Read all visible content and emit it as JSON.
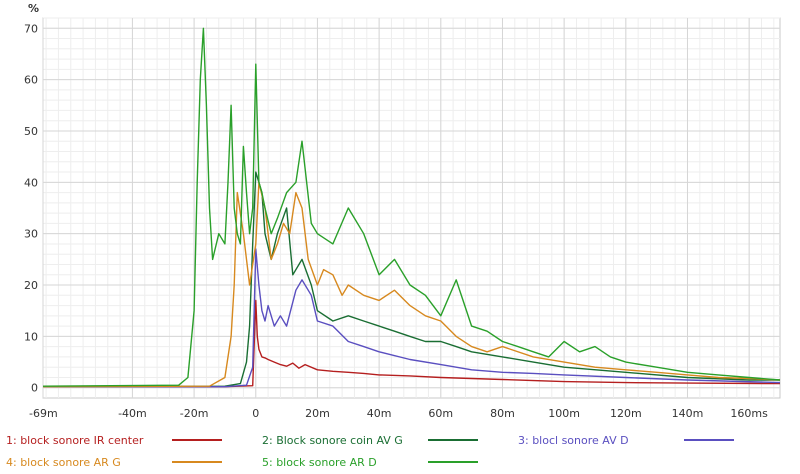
{
  "chart_data": {
    "type": "line",
    "title": "",
    "xlabel": "",
    "ylabel": "%",
    "xlim": [
      -69,
      170
    ],
    "ylim": [
      -2,
      72
    ],
    "x_ticks": [
      {
        "value": -69,
        "label": "-69m"
      },
      {
        "value": -40,
        "label": "-40m"
      },
      {
        "value": -20,
        "label": "-20m"
      },
      {
        "value": 0,
        "label": "0"
      },
      {
        "value": 20,
        "label": "20m"
      },
      {
        "value": 40,
        "label": "40m"
      },
      {
        "value": 60,
        "label": "60m"
      },
      {
        "value": 80,
        "label": "80m"
      },
      {
        "value": 100,
        "label": "100m"
      },
      {
        "value": 120,
        "label": "120m"
      },
      {
        "value": 140,
        "label": "140m"
      },
      {
        "value": 160,
        "label": "160ms"
      }
    ],
    "y_ticks": [
      0,
      10,
      20,
      30,
      40,
      50,
      60,
      70
    ],
    "grid": true,
    "legend_position": "bottom",
    "series": [
      {
        "name": "1: block sonore IR center",
        "color": "#b51f1f",
        "x": [
          -69,
          -10,
          -1,
          0,
          0.5,
          1,
          2,
          3,
          4,
          6,
          8,
          10,
          12,
          14,
          16,
          20,
          25,
          30,
          35,
          40,
          50,
          60,
          70,
          80,
          100,
          120,
          140,
          170
        ],
        "y": [
          0.2,
          0.2,
          0.4,
          17,
          10,
          7.5,
          6,
          5.8,
          5.5,
          5,
          4.5,
          4.2,
          4.8,
          3.8,
          4.5,
          3.5,
          3.2,
          3,
          2.8,
          2.5,
          2.3,
          2,
          1.8,
          1.6,
          1.2,
          1,
          0.9,
          0.8
        ]
      },
      {
        "name": "2: Block sonore coin AV G",
        "color": "#1a6e33",
        "x": [
          -69,
          -10,
          -5,
          -3,
          -2,
          -1,
          0,
          1,
          2,
          3,
          5,
          7,
          10,
          12,
          15,
          18,
          20,
          25,
          30,
          35,
          40,
          45,
          50,
          55,
          60,
          65,
          70,
          80,
          90,
          100,
          120,
          140,
          160,
          170
        ],
        "y": [
          0.2,
          0.3,
          0.8,
          5,
          12,
          28,
          42,
          40,
          38,
          30,
          25,
          30,
          35,
          22,
          25,
          20,
          15,
          13,
          14,
          13,
          12,
          11,
          10,
          9,
          9,
          8,
          7,
          6,
          5,
          4,
          3,
          2,
          1.5,
          1.5
        ]
      },
      {
        "name": "3: blocl sonore AV D",
        "color": "#5a4fc0",
        "x": [
          -69,
          -10,
          -3,
          -1,
          0,
          1,
          2,
          3,
          4,
          6,
          8,
          10,
          13,
          15,
          18,
          20,
          25,
          30,
          35,
          40,
          50,
          60,
          70,
          80,
          90,
          100,
          120,
          140,
          170
        ],
        "y": [
          0.2,
          0.2,
          0.5,
          4,
          27,
          20,
          15,
          13,
          16,
          12,
          14,
          12,
          19,
          21,
          18,
          13,
          12,
          9,
          8,
          7,
          5.5,
          4.5,
          3.5,
          3,
          2.8,
          2.5,
          2,
          1.5,
          1
        ]
      },
      {
        "name": "4: block sonore AR G",
        "color": "#d7891f",
        "x": [
          -69,
          -15,
          -10,
          -8,
          -7,
          -6,
          -4,
          -3,
          -2,
          0,
          1,
          3,
          5,
          7,
          9,
          11,
          13,
          15,
          17,
          20,
          22,
          25,
          28,
          30,
          35,
          40,
          45,
          50,
          55,
          60,
          65,
          70,
          75,
          80,
          90,
          100,
          110,
          120,
          130,
          140,
          150,
          160,
          170
        ],
        "y": [
          0.2,
          0.3,
          2,
          10,
          20,
          38,
          30,
          25,
          20,
          28,
          40,
          35,
          25,
          28,
          32,
          30,
          38,
          35,
          25,
          20,
          23,
          22,
          18,
          20,
          18,
          17,
          19,
          16,
          14,
          13,
          10,
          8,
          7,
          8,
          6,
          5,
          4,
          3.5,
          3,
          2.5,
          2,
          1.8,
          1.5
        ]
      },
      {
        "name": "5: block sonore AR D",
        "color": "#2aa02a",
        "x": [
          -69,
          -25,
          -22,
          -20,
          -19,
          -18,
          -17,
          -16,
          -15,
          -14,
          -12,
          -10,
          -9,
          -8,
          -7,
          -6,
          -5,
          -4,
          -3,
          -2,
          -1,
          0,
          1,
          2,
          3,
          5,
          7,
          10,
          13,
          15,
          18,
          20,
          25,
          30,
          35,
          40,
          45,
          50,
          55,
          60,
          65,
          70,
          75,
          80,
          85,
          90,
          95,
          100,
          105,
          110,
          115,
          120,
          130,
          140,
          150,
          160,
          170
        ],
        "y": [
          0.3,
          0.5,
          2,
          15,
          40,
          60,
          70,
          55,
          35,
          25,
          30,
          28,
          40,
          55,
          35,
          30,
          28,
          47,
          38,
          30,
          35,
          63,
          40,
          38,
          35,
          30,
          33,
          38,
          40,
          48,
          32,
          30,
          28,
          35,
          30,
          22,
          25,
          20,
          18,
          14,
          21,
          12,
          11,
          9,
          8,
          7,
          6,
          9,
          7,
          8,
          6,
          5,
          4,
          3,
          2.5,
          2,
          1.5
        ]
      }
    ]
  }
}
